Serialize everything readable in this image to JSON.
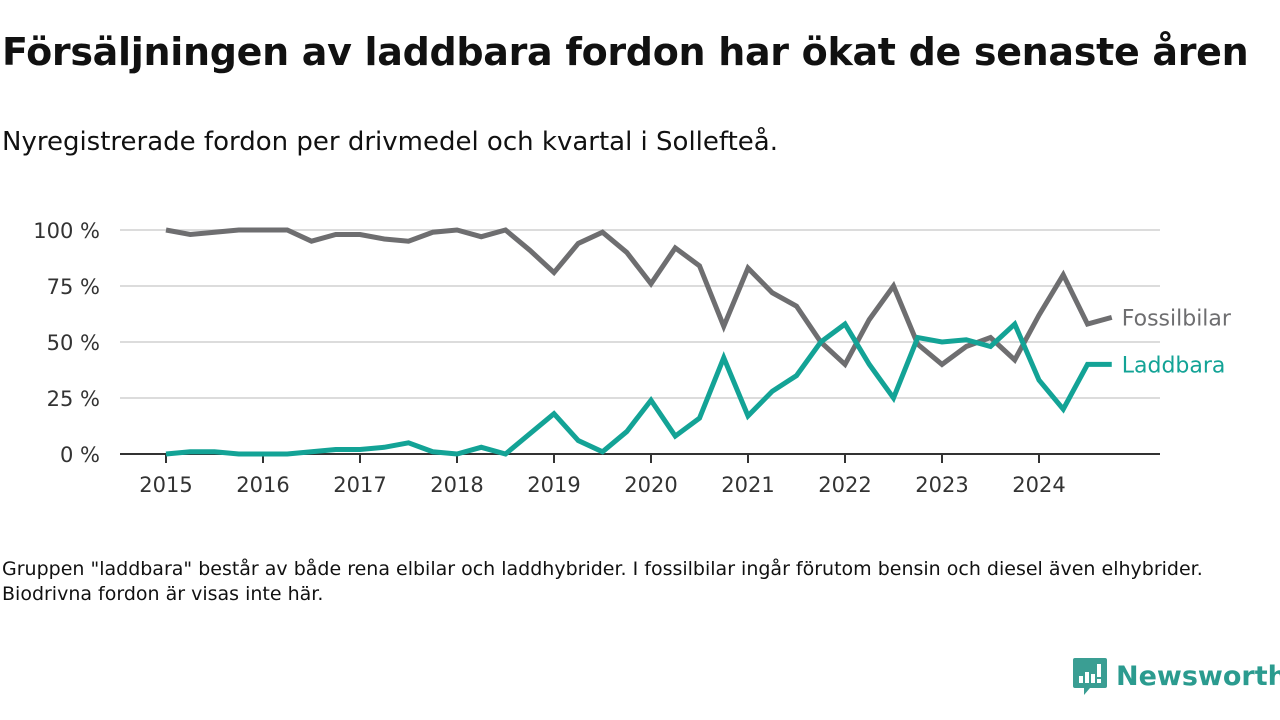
{
  "title": "Försäljningen av laddbara fordon har ökat de senaste åren",
  "subtitle": "Nyregistrerade fordon per drivmedel och kvartal i Sollefteå.",
  "note": "Gruppen \"laddbara\" består av både rena elbilar och laddhybrider. I fossilbilar ingår förutom bensin och diesel även elhybrider. Biodrivna fordon är visas inte här.",
  "logo": "Newsworthy",
  "chart_data": {
    "type": "line",
    "title": "Försäljningen av laddbara fordon har ökat de senaste åren",
    "xlabel": "",
    "ylabel": "",
    "x_start": "2015 Q1",
    "x_ticks": [
      "2015",
      "2016",
      "2017",
      "2018",
      "2019",
      "2020",
      "2021",
      "2022",
      "2023",
      "2024"
    ],
    "y_ticks": [
      "0 %",
      "25 %",
      "50 %",
      "75 %",
      "100 %"
    ],
    "y_tick_values": [
      0,
      25,
      50,
      75,
      100
    ],
    "ylim": [
      0,
      100
    ],
    "grid": true,
    "legend": "right-end-labels",
    "series": [
      {
        "name": "Fossilbilar",
        "color": "#6e6e70",
        "values": [
          100,
          98,
          99,
          100,
          100,
          100,
          95,
          98,
          98,
          96,
          95,
          99,
          100,
          97,
          100,
          91,
          81,
          94,
          99,
          90,
          76,
          92,
          84,
          57,
          83,
          72,
          66,
          50,
          40,
          60,
          75,
          49,
          40,
          48,
          52,
          42,
          62,
          80,
          58,
          61
        ]
      },
      {
        "name": "Laddbara",
        "color": "#13a396",
        "values": [
          0,
          1,
          1,
          0,
          0,
          0,
          1,
          2,
          2,
          3,
          5,
          1,
          0,
          3,
          0,
          9,
          18,
          6,
          1,
          10,
          24,
          8,
          16,
          43,
          17,
          28,
          35,
          50,
          58,
          40,
          25,
          52,
          50,
          51,
          48,
          58,
          33,
          20,
          40,
          40
        ]
      }
    ]
  }
}
